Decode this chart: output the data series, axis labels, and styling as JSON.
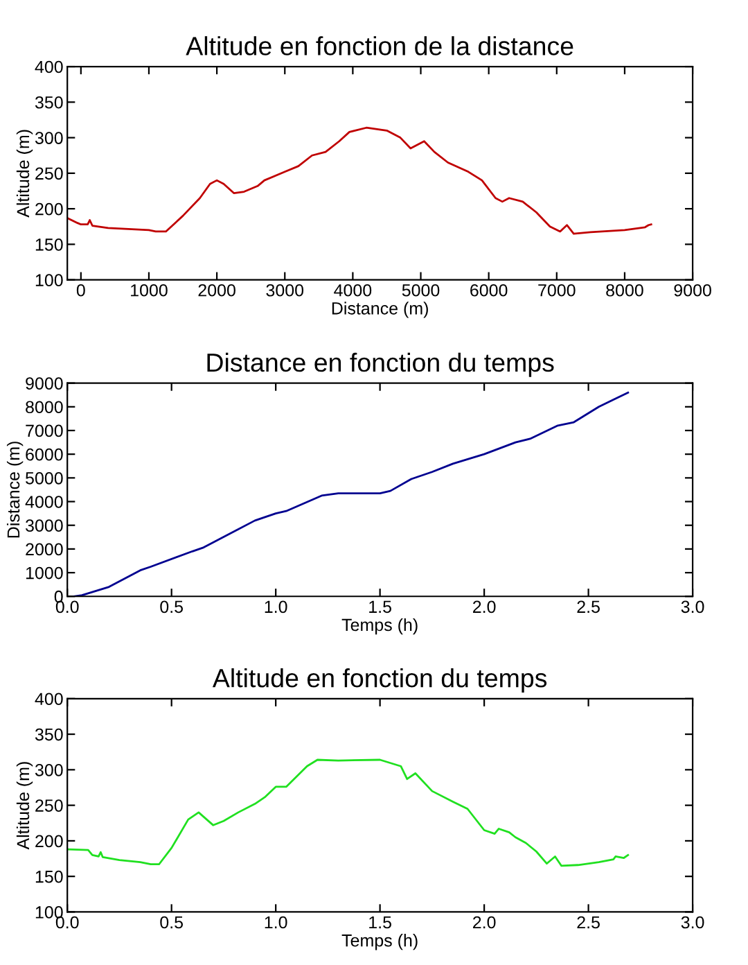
{
  "chart_data": [
    {
      "type": "line",
      "title": "Altitude en fonction de la distance",
      "xlabel": "Distance (m)",
      "ylabel": "Altitude (m)",
      "xlim": [
        -200,
        9000
      ],
      "ylim": [
        100,
        400
      ],
      "xticks": [
        0,
        1000,
        2000,
        3000,
        4000,
        5000,
        6000,
        7000,
        8000,
        9000
      ],
      "yticks": [
        100,
        150,
        200,
        250,
        300,
        350,
        400
      ],
      "grid": false,
      "series": [
        {
          "color": "#c00000",
          "x": [
            -200,
            -50,
            0,
            100,
            130,
            170,
            400,
            800,
            1000,
            1100,
            1250,
            1500,
            1750,
            1900,
            2000,
            2100,
            2250,
            2400,
            2600,
            2700,
            3000,
            3200,
            3400,
            3600,
            3800,
            3950,
            4200,
            4500,
            4700,
            4850,
            5050,
            5200,
            5400,
            5700,
            5900,
            6100,
            6200,
            6300,
            6500,
            6700,
            6900,
            7050,
            7150,
            7250,
            7500,
            8000,
            8300,
            8350,
            8390
          ],
          "values": [
            187,
            180,
            178,
            178,
            184,
            176,
            173,
            171,
            170,
            168,
            168,
            190,
            215,
            235,
            240,
            235,
            222,
            224,
            232,
            240,
            252,
            260,
            275,
            280,
            295,
            308,
            314,
            310,
            300,
            285,
            295,
            280,
            265,
            252,
            240,
            215,
            210,
            215,
            210,
            195,
            175,
            168,
            177,
            165,
            167,
            170,
            174,
            177,
            178
          ]
        }
      ]
    },
    {
      "type": "line",
      "title": "Distance en fonction du temps",
      "xlabel": "Temps (h)",
      "ylabel": "Distance (m)",
      "xlim": [
        0,
        3
      ],
      "ylim": [
        0,
        9000
      ],
      "xticks": [
        {
          "value": 0,
          "label": "0.0"
        },
        0.5,
        {
          "value": 1,
          "label": "1.0"
        },
        1.5,
        {
          "value": 2,
          "label": "2.0"
        },
        2.5,
        {
          "value": 3,
          "label": "3.0"
        }
      ],
      "yticks": [
        0,
        1000,
        2000,
        3000,
        4000,
        5000,
        6000,
        7000,
        8000,
        9000
      ],
      "grid": false,
      "series": [
        {
          "color": "#000090",
          "x": [
            0.03,
            0.07,
            0.2,
            0.35,
            0.4,
            0.6,
            0.65,
            0.9,
            1.0,
            1.05,
            1.22,
            1.3,
            1.5,
            1.55,
            1.65,
            1.75,
            1.85,
            2.0,
            2.15,
            2.22,
            2.35,
            2.43,
            2.55,
            2.62,
            2.69
          ],
          "values": [
            0,
            50,
            400,
            1100,
            1250,
            1900,
            2050,
            3200,
            3500,
            3600,
            4250,
            4350,
            4350,
            4450,
            4950,
            5250,
            5600,
            6000,
            6500,
            6650,
            7200,
            7350,
            8000,
            8300,
            8600
          ]
        }
      ]
    },
    {
      "type": "line",
      "title": "Altitude en fonction du temps",
      "xlabel": "Temps (h)",
      "ylabel": "Altitude (m)",
      "xlim": [
        0,
        3
      ],
      "ylim": [
        100,
        400
      ],
      "xticks": [
        {
          "value": 0,
          "label": "0.0"
        },
        0.5,
        {
          "value": 1,
          "label": "1.0"
        },
        1.5,
        {
          "value": 2,
          "label": "2.0"
        },
        2.5,
        {
          "value": 3,
          "label": "3.0"
        }
      ],
      "yticks": [
        100,
        150,
        200,
        250,
        300,
        350,
        400
      ],
      "grid": false,
      "series": [
        {
          "color": "#20e020",
          "x": [
            0,
            0.1,
            0.12,
            0.15,
            0.16,
            0.17,
            0.25,
            0.35,
            0.4,
            0.44,
            0.5,
            0.58,
            0.63,
            0.7,
            0.75,
            0.82,
            0.9,
            0.95,
            1.0,
            1.05,
            1.15,
            1.2,
            1.3,
            1.5,
            1.6,
            1.63,
            1.67,
            1.75,
            1.85,
            1.92,
            2.0,
            2.05,
            2.07,
            2.12,
            2.15,
            2.2,
            2.25,
            2.3,
            2.34,
            2.37,
            2.45,
            2.55,
            2.62,
            2.63,
            2.67,
            2.69
          ],
          "values": [
            188,
            187,
            180,
            178,
            184,
            177,
            173,
            170,
            167,
            167,
            190,
            230,
            240,
            222,
            228,
            240,
            252,
            262,
            276,
            276,
            305,
            314,
            313,
            314,
            305,
            287,
            295,
            270,
            255,
            245,
            215,
            210,
            217,
            212,
            205,
            197,
            185,
            168,
            178,
            165,
            166,
            170,
            174,
            178,
            176,
            180
          ]
        }
      ]
    }
  ]
}
